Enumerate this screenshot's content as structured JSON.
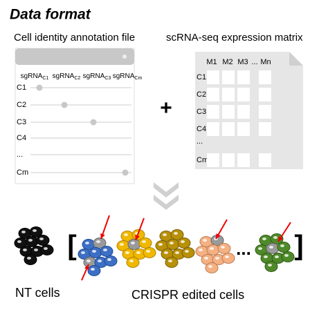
{
  "header": {
    "title": "Data format"
  },
  "annotation": {
    "title": "Cell identity annotation file",
    "columns": [
      {
        "main": "sgRNA",
        "sub": "C1"
      },
      {
        "main": "sgRNA",
        "sub": "C2"
      },
      {
        "main": "sgRNA",
        "sub": "C3"
      },
      {
        "main": "sgRNA",
        "sub": "Cm"
      }
    ],
    "rows": [
      "C1",
      "C2",
      "C3",
      "C4",
      "...",
      "Cm"
    ]
  },
  "operator": "+",
  "matrix": {
    "title": "scRNA-seq expression matrix",
    "columns": [
      "M1",
      "M2",
      "M3",
      "...",
      "Mn"
    ],
    "rows": [
      "C1",
      "C2",
      "C3",
      "C4",
      "...",
      "Cm"
    ]
  },
  "cells": {
    "open_bracket": "[",
    "close_bracket": "]",
    "ellipsis": "...",
    "nt_label": "NT cells",
    "edited_label": "CRISPR edited cells"
  }
}
